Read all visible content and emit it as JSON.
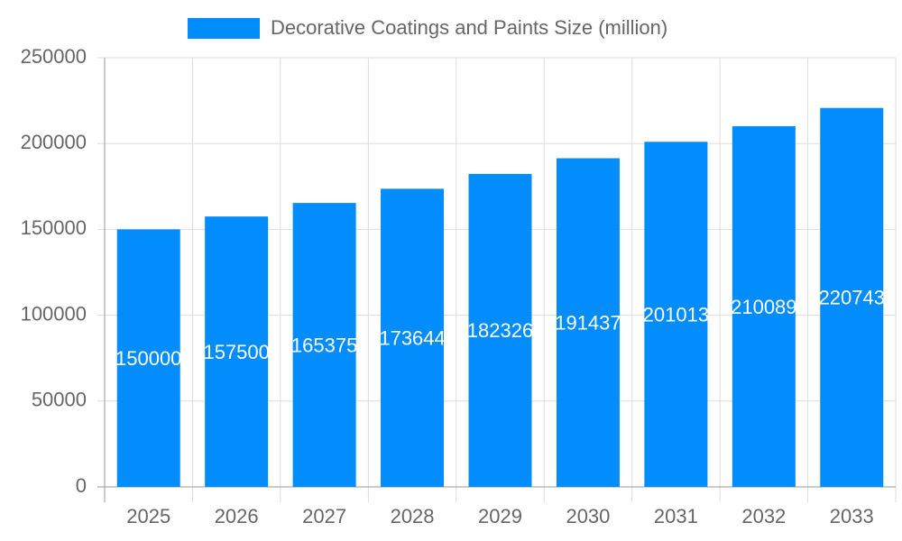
{
  "chart_data": {
    "type": "bar",
    "categories": [
      "2025",
      "2026",
      "2027",
      "2028",
      "2029",
      "2030",
      "2031",
      "2032",
      "2033"
    ],
    "series": [
      {
        "name": "Decorative Coatings and Paints Size (million)",
        "color": "#038cfb",
        "values": [
          150000,
          157500,
          165375,
          173644,
          182326,
          191437,
          201013,
          210089,
          220743
        ]
      }
    ],
    "ylim": [
      0,
      250000
    ],
    "yticks": [
      0,
      50000,
      100000,
      150000,
      200000,
      250000
    ],
    "grid": true,
    "legend": "top"
  }
}
